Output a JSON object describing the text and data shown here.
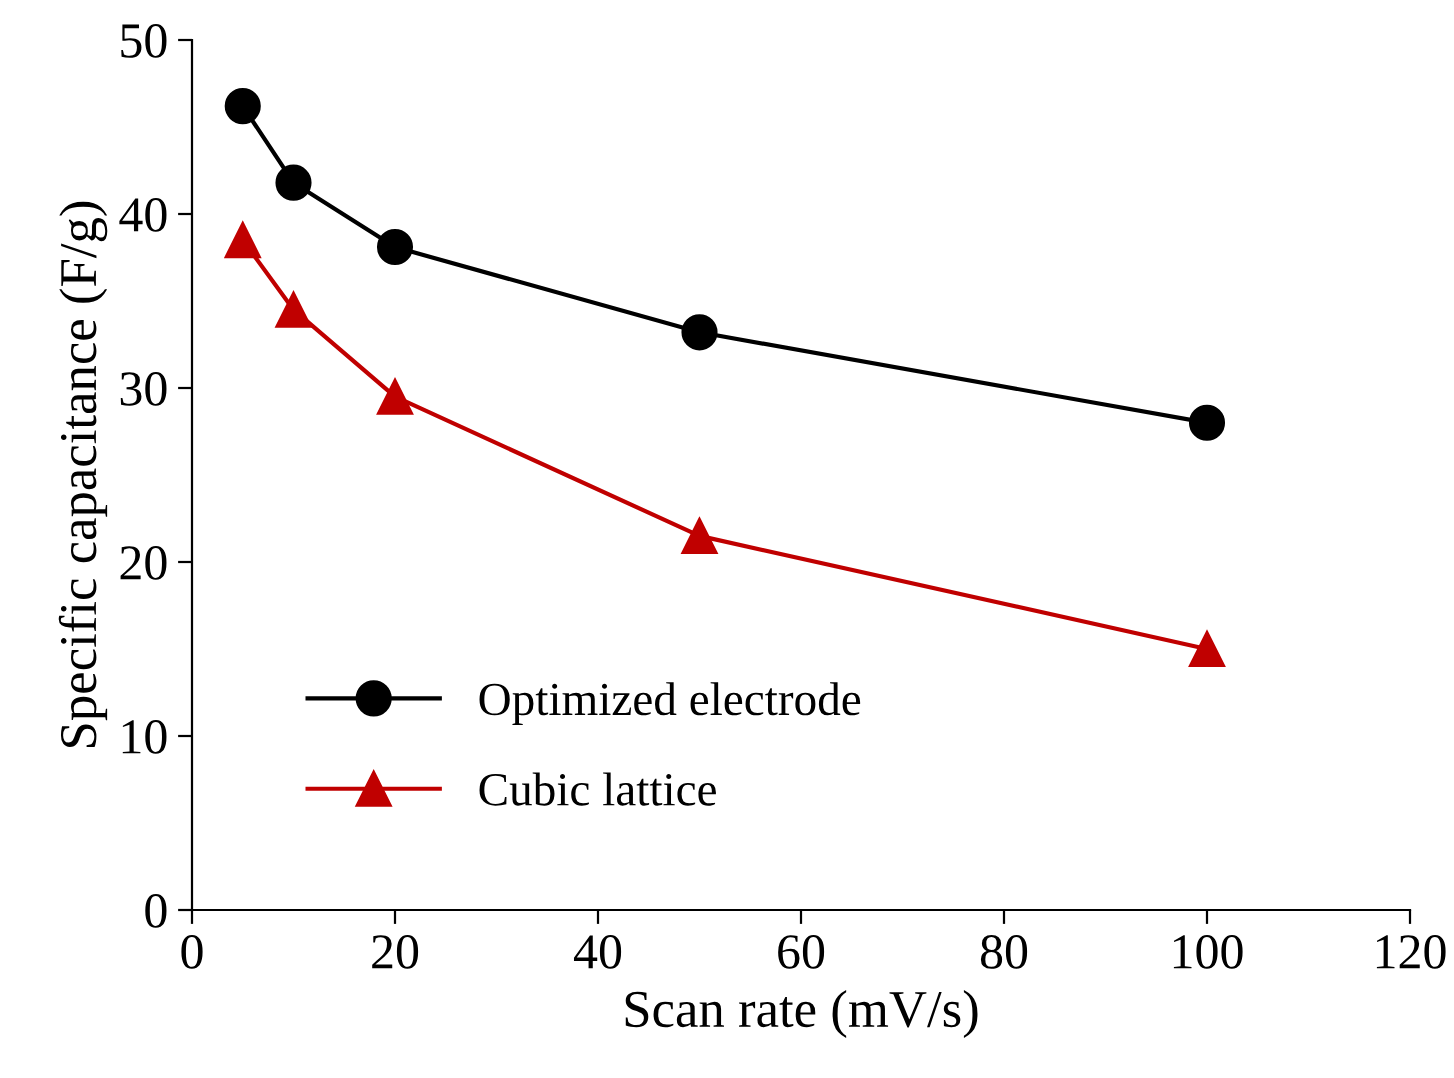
{
  "chart_data": {
    "type": "line",
    "xlabel": "Scan rate (mV/s)",
    "ylabel": "Specific capacitance (F/g)",
    "x": [
      5,
      10,
      20,
      50,
      100
    ],
    "series": [
      {
        "name": "Optimized electrode",
        "color": "#000000",
        "marker": "circle",
        "values": [
          46.2,
          41.8,
          38.1,
          33.2,
          28.0
        ]
      },
      {
        "name": "Cubic lattice",
        "color": "#c00000",
        "marker": "triangle",
        "values": [
          38.5,
          34.5,
          29.5,
          21.5,
          15.0
        ]
      }
    ],
    "xlim": [
      0,
      120
    ],
    "xticks": [
      0,
      20,
      40,
      60,
      80,
      100,
      120
    ],
    "ylim": [
      0,
      50
    ],
    "yticks": [
      0,
      10,
      20,
      30,
      40,
      50
    ],
    "grid": false,
    "legend": "bottom left",
    "line_style": "solid"
  }
}
